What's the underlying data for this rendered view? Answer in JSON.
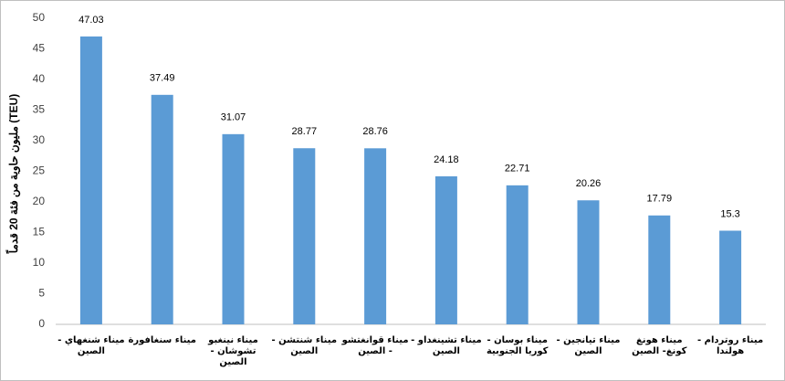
{
  "chart_data": {
    "type": "bar",
    "y_label": "مليون حاوية من فئة 20 قدماً (TEU)",
    "categories": [
      "ميناء شنغهاي - الصين",
      "ميناء سنغافورة",
      "ميناء نينغبو تشوشان - الصين",
      "ميناء شنتشن - الصين",
      "ميناء قوانغتشو - الصين",
      "ميناء تشينغداو - الصين",
      "ميناء بوسان - كوريا الجنوبية",
      "ميناء تيانجين - الصين",
      "ميناء هونغ كونغ- الصين",
      "ميناء روتردام - هولندا"
    ],
    "values": [
      47.03,
      37.49,
      31.07,
      28.77,
      28.76,
      24.18,
      22.71,
      20.26,
      17.79,
      15.3
    ],
    "color": "#5b9bd5",
    "ylim": [
      0,
      50
    ],
    "yticks": [
      0,
      5,
      10,
      15,
      20,
      25,
      30,
      35,
      40,
      45,
      50
    ],
    "grid": false
  }
}
